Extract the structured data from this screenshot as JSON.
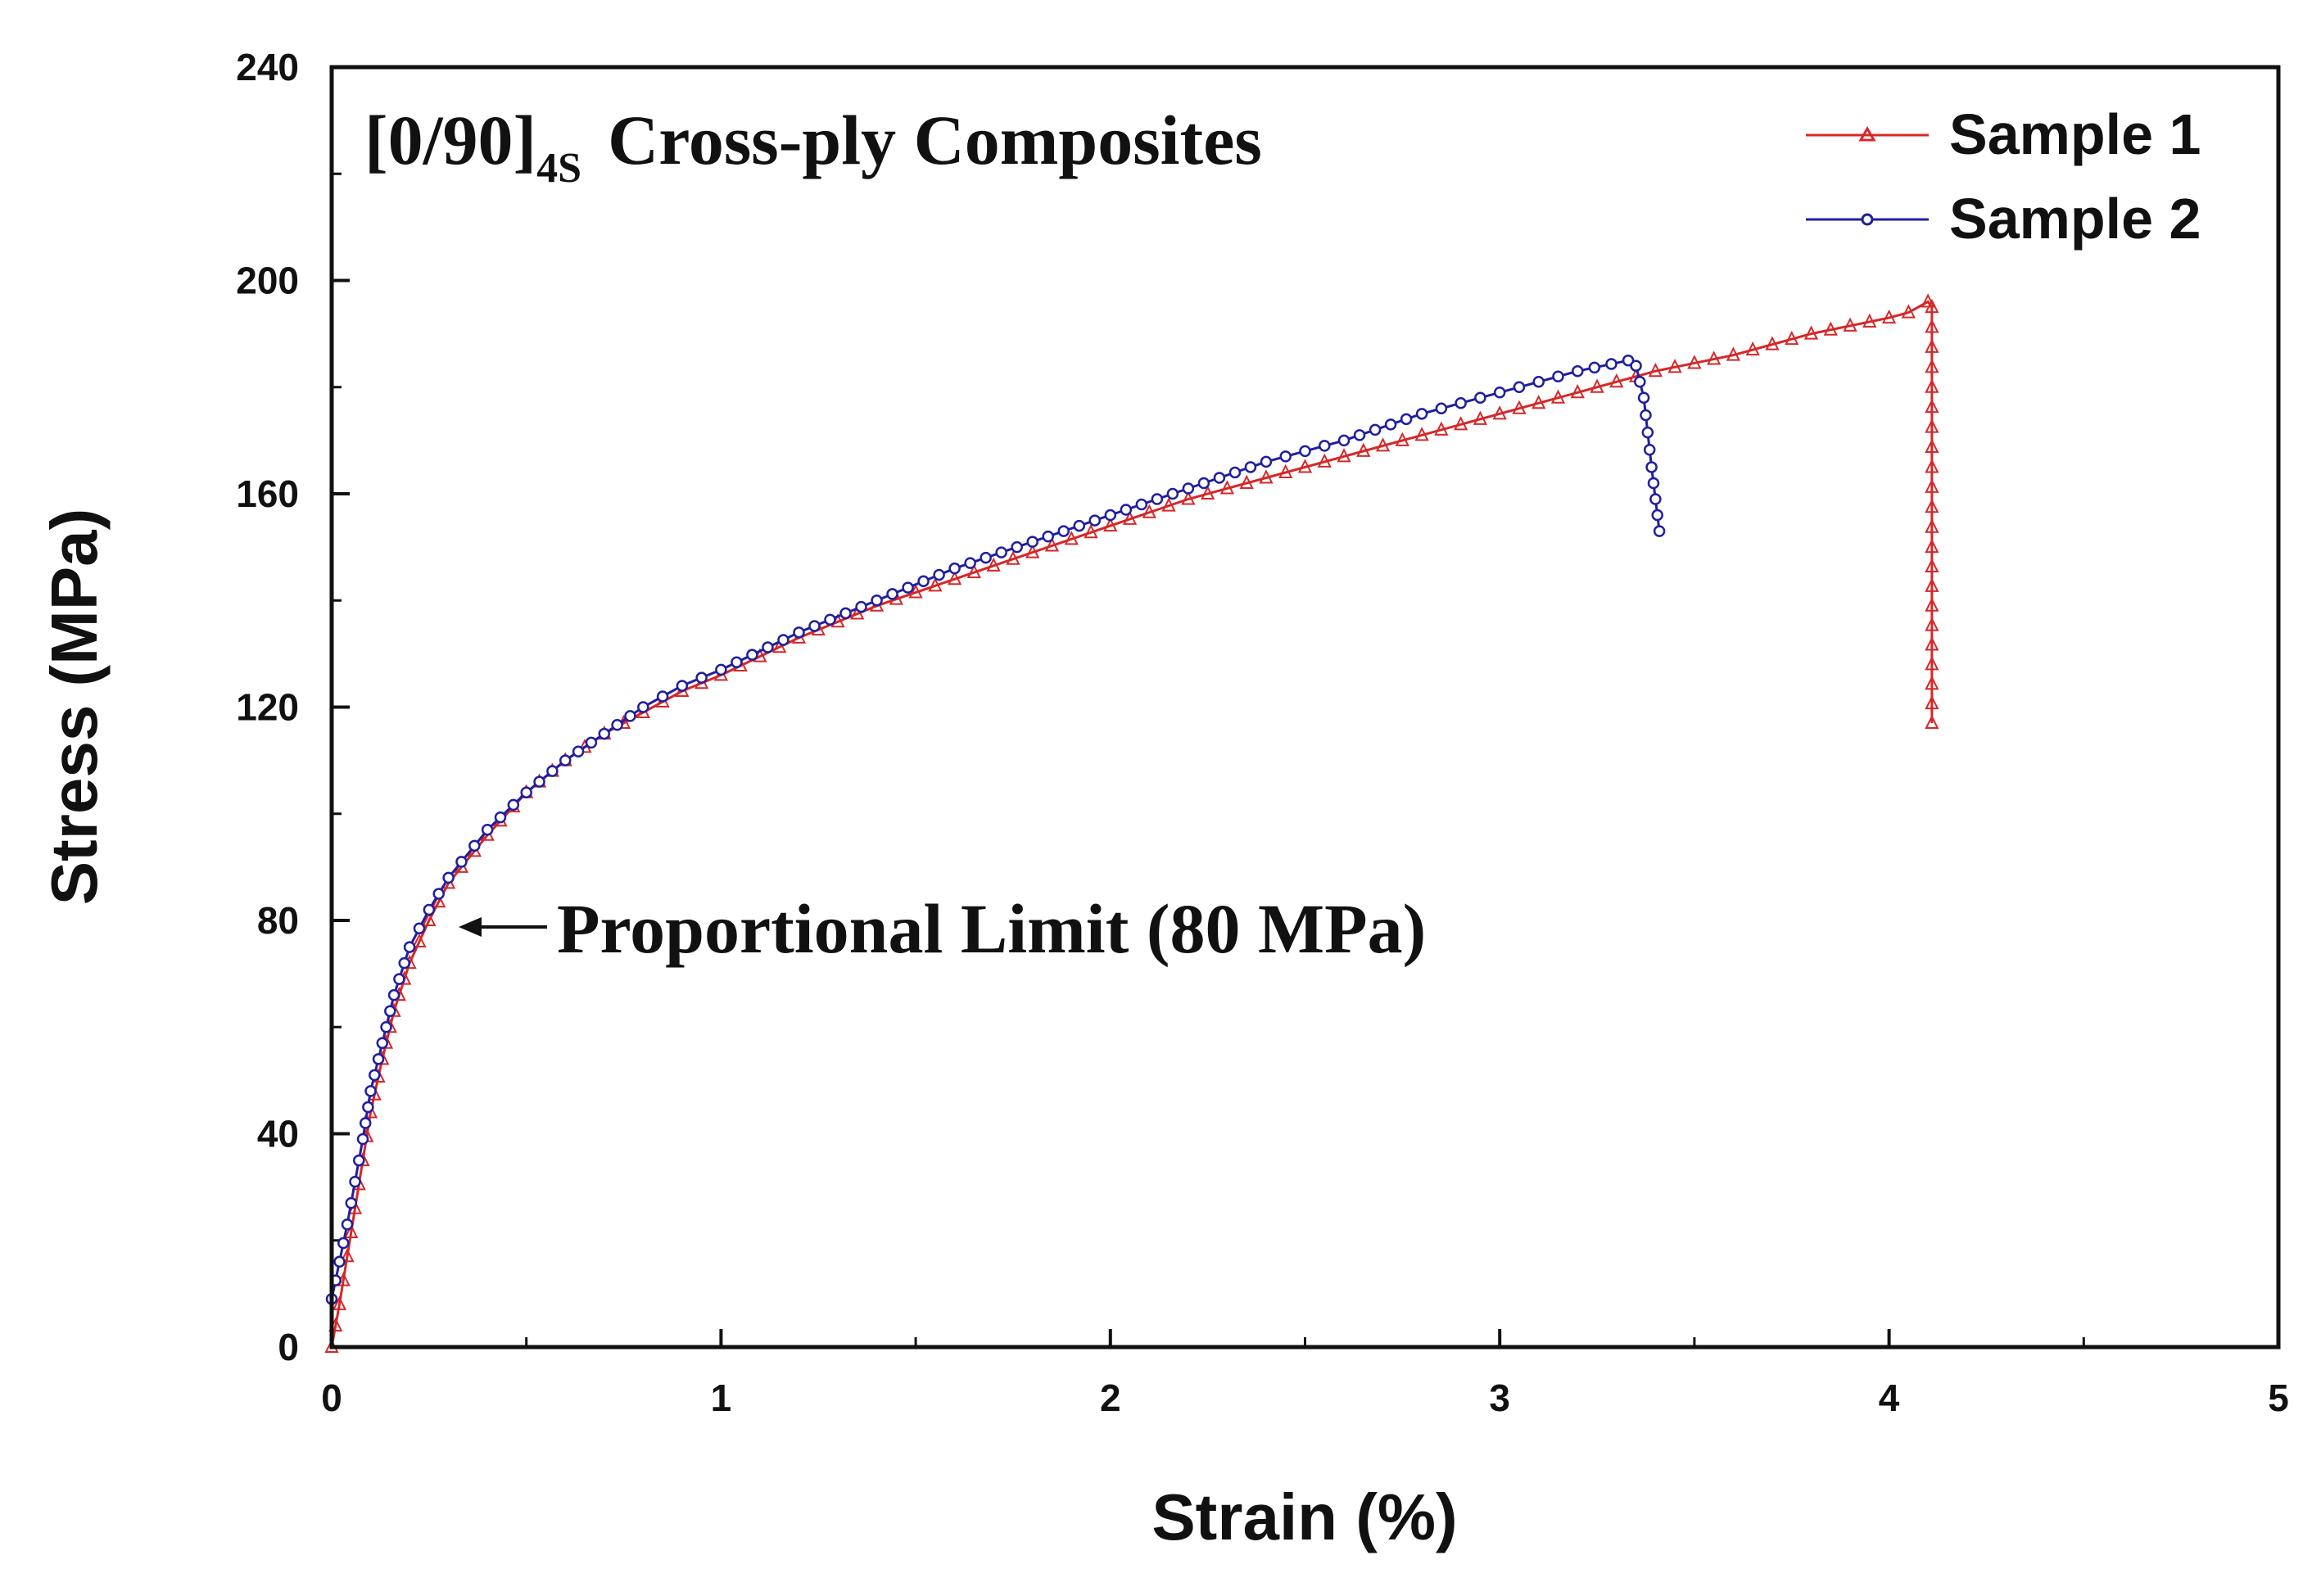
{
  "chart_data": {
    "type": "line",
    "title": "[0/90]4S Cross-ply Composites",
    "title_parts": {
      "main": "[0/90]",
      "subscript": "4S",
      "rest": "Cross-ply Composites"
    },
    "xlabel": "Strain (%)",
    "ylabel": "Stress (MPa)",
    "xlim": [
      0,
      5
    ],
    "ylim": [
      0,
      240
    ],
    "x_ticks": [
      0,
      1,
      2,
      3,
      4,
      5
    ],
    "x_tick_labels": [
      "0",
      "1",
      "2",
      "3",
      "4",
      "5"
    ],
    "x_minor_ticks": [
      0.5,
      1.5,
      2.5,
      3.5,
      4.5
    ],
    "y_ticks": [
      0,
      40,
      80,
      120,
      160,
      200,
      240
    ],
    "y_tick_labels": [
      "0",
      "40",
      "80",
      "120",
      "160",
      "200",
      "240"
    ],
    "y_minor_ticks": [
      20,
      60,
      100,
      140,
      180,
      220
    ],
    "grid": false,
    "legend_position": "top-right",
    "annotation": {
      "text": "Proportional Limit (80 MPa)",
      "x": 0.26,
      "y": 80
    },
    "series": [
      {
        "name": "Sample 1",
        "color": "#d62728",
        "marker": "triangle-open",
        "points": [
          [
            0,
            0
          ],
          [
            0.02,
            8
          ],
          [
            0.04,
            17
          ],
          [
            0.06,
            26
          ],
          [
            0.08,
            35
          ],
          [
            0.1,
            44
          ],
          [
            0.13,
            54
          ],
          [
            0.16,
            63
          ],
          [
            0.2,
            72
          ],
          [
            0.25,
            80
          ],
          [
            0.3,
            87
          ],
          [
            0.4,
            96
          ],
          [
            0.5,
            104
          ],
          [
            0.6,
            110
          ],
          [
            0.7,
            115
          ],
          [
            0.8,
            119
          ],
          [
            0.9,
            123
          ],
          [
            1.0,
            126
          ],
          [
            1.2,
            133
          ],
          [
            1.4,
            139
          ],
          [
            1.6,
            144
          ],
          [
            1.8,
            149
          ],
          [
            2.0,
            154
          ],
          [
            2.2,
            159
          ],
          [
            2.4,
            163
          ],
          [
            2.6,
            167
          ],
          [
            2.8,
            171
          ],
          [
            3.0,
            175
          ],
          [
            3.2,
            179
          ],
          [
            3.4,
            183
          ],
          [
            3.6,
            186
          ],
          [
            3.8,
            190
          ],
          [
            4.0,
            193
          ],
          [
            4.05,
            194
          ],
          [
            4.1,
            196
          ],
          [
            4.11,
            195
          ],
          [
            4.11,
            150
          ],
          [
            4.11,
            117
          ]
        ]
      },
      {
        "name": "Sample 2",
        "color": "#1f1f9f",
        "marker": "circle-open",
        "points": [
          [
            0,
            9
          ],
          [
            0.02,
            16
          ],
          [
            0.04,
            23
          ],
          [
            0.06,
            31
          ],
          [
            0.08,
            39
          ],
          [
            0.1,
            48
          ],
          [
            0.13,
            57
          ],
          [
            0.16,
            66
          ],
          [
            0.2,
            75
          ],
          [
            0.25,
            82
          ],
          [
            0.3,
            88
          ],
          [
            0.4,
            97
          ],
          [
            0.5,
            104
          ],
          [
            0.6,
            110
          ],
          [
            0.7,
            115
          ],
          [
            0.8,
            120
          ],
          [
            0.9,
            124
          ],
          [
            1.0,
            127
          ],
          [
            1.2,
            134
          ],
          [
            1.4,
            140
          ],
          [
            1.6,
            146
          ],
          [
            1.8,
            151
          ],
          [
            2.0,
            156
          ],
          [
            2.2,
            161
          ],
          [
            2.4,
            166
          ],
          [
            2.6,
            170
          ],
          [
            2.8,
            175
          ],
          [
            3.0,
            179
          ],
          [
            3.2,
            183
          ],
          [
            3.33,
            185
          ],
          [
            3.35,
            184
          ],
          [
            3.37,
            178
          ],
          [
            3.39,
            165
          ],
          [
            3.41,
            153
          ]
        ]
      }
    ]
  }
}
